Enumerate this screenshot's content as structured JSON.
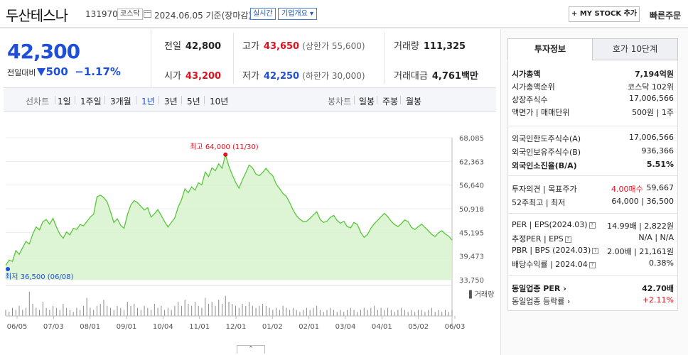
{
  "header": {
    "stock_name": "두산테스나",
    "code": "131970",
    "market_tag": "코스닥",
    "date_text": "2024.06.05  기준(장마감)",
    "realtime_label": "실시간",
    "company_overview_label": "기업개요 ▾",
    "my_stock_label": "+ MY STOCK 추가",
    "quick_order_label": "빠른주문"
  },
  "price": {
    "current": "42,300",
    "change_label": "전일대비",
    "change_amount": "500",
    "change_percent": "−1.17%",
    "direction": "down"
  },
  "stats": {
    "prev_close_label": "전일",
    "prev_close": "42,800",
    "high_label": "고가",
    "high": "43,650",
    "upper_limit": "(상한가 55,600)",
    "volume_label": "거래량",
    "volume": "111,325",
    "open_label": "시가",
    "open": "43,200",
    "low_label": "저가",
    "low": "42,250",
    "lower_limit": "(하한가 30,000)",
    "amount_label": "거래대금",
    "amount": "4,761",
    "amount_unit": "백만"
  },
  "period_bar": {
    "line_label": "선차트",
    "line_periods": [
      "1일",
      "1주일",
      "3개월",
      "1년",
      "3년",
      "5년",
      "10년"
    ],
    "active_period": "1년",
    "candle_label": "봉차트",
    "candle_periods": [
      "일봉",
      "주봉",
      "월봉"
    ]
  },
  "chart_data": {
    "type": "area",
    "title": "",
    "y_ticks": [
      "68,085",
      "62,363",
      "56,640",
      "50,918",
      "45,195",
      "39,473",
      "33,750"
    ],
    "ylim": [
      33750,
      68085
    ],
    "x_ticks": [
      "06/05",
      "07/03",
      "08/01",
      "09/01",
      "10/04",
      "11/01",
      "12/01",
      "01/02",
      "02/01",
      "03/04",
      "04/01",
      "05/02",
      "06/03"
    ],
    "high_annotation": "최고 64,000 (11/30)",
    "low_annotation": "최저 36,500 (06/08)",
    "volume_label": "거래량",
    "line_color": "#58c73b",
    "fill_color": "#d7f3cd",
    "series": [
      {
        "values": [
          37200,
          38500,
          38200,
          40800,
          39900,
          41500,
          43000,
          42400,
          44800,
          46500,
          45800,
          47800,
          48300,
          47200,
          48600,
          46500,
          44800,
          43800,
          45300,
          44600,
          46200,
          45900,
          47100,
          46800,
          47800,
          48900,
          49600,
          53800,
          54200,
          53600,
          52600,
          50200,
          47600,
          48500,
          46900,
          46200,
          49500,
          51800,
          52900,
          52400,
          51500,
          50600,
          51200,
          48900,
          49700,
          50700,
          49300,
          47800,
          46500,
          47600,
          48700,
          51300,
          53100,
          55700,
          54800,
          56200,
          55400,
          57200,
          56700,
          59800,
          58700,
          60800,
          60100,
          61800,
          60700,
          64000,
          61200,
          59100,
          57300,
          55900,
          57900,
          59600,
          61500,
          60800,
          59300,
          58900,
          59700,
          60700,
          59600,
          58900,
          56900,
          55800,
          54600,
          53900,
          52400,
          50600,
          49200,
          48400,
          47800,
          47900,
          48600,
          49400,
          50200,
          48300,
          47600,
          47900,
          48800,
          49300,
          48100,
          47400,
          47900,
          46600,
          46300,
          47600,
          47100,
          45200,
          44000,
          44700,
          46200,
          47300,
          48100,
          49000,
          49800,
          49000,
          47900,
          47100,
          46600,
          47300,
          48200,
          47800,
          46400,
          45900,
          46600,
          47200,
          46400,
          45600,
          44700,
          44200,
          45100,
          45600,
          44800,
          44300,
          43300
        ]
      }
    ],
    "volume": [
      3,
      2,
      4,
      3,
      5,
      3,
      4,
      12,
      6,
      4,
      3,
      7,
      4,
      3,
      5,
      4,
      3,
      6,
      4,
      3,
      2,
      4,
      3,
      5,
      9,
      4,
      3,
      5,
      6,
      8,
      5,
      4,
      3,
      5,
      4,
      3,
      7,
      5,
      6,
      4,
      3,
      5,
      4,
      3,
      6,
      4,
      5,
      3,
      4,
      3,
      5,
      7,
      5,
      8,
      6,
      5,
      7,
      5,
      4,
      9,
      6,
      7,
      5,
      8,
      6,
      10,
      7,
      6,
      5,
      4,
      6,
      5,
      7,
      5,
      4,
      5,
      6,
      5,
      4,
      3,
      4,
      3,
      5,
      4,
      3,
      4,
      3,
      2,
      3,
      4,
      3,
      4,
      5,
      3,
      2,
      3,
      4,
      3,
      2,
      3,
      2,
      3,
      4,
      3,
      2,
      3,
      4,
      3,
      4,
      5,
      3,
      4,
      3,
      4,
      3,
      2,
      3,
      4,
      3,
      2,
      3,
      2,
      3,
      3,
      2,
      3,
      4,
      2,
      3,
      2,
      3,
      2,
      3
    ]
  },
  "side_panel": {
    "tab_invest": "투자정보",
    "tab_quote": "호가 10단계",
    "rows1": [
      {
        "k": "시가총액",
        "v": "7,194억원",
        "bold": true
      },
      {
        "k": "시가총액순위",
        "v": "코스닥 102위"
      },
      {
        "k": "상장주식수",
        "v": "17,006,566"
      },
      {
        "k": "액면가 | 매매단위",
        "v": "500원 | 1주"
      }
    ],
    "rows2": [
      {
        "k": "외국인한도주식수(A)",
        "v": "17,006,566"
      },
      {
        "k": "외국인보유주식수(B)",
        "v": "936,366"
      },
      {
        "k": "외국인소진율(B/A)",
        "v": "5.51%",
        "bold": true
      }
    ],
    "opinion_label": "투자의견 | 목표주가",
    "opinion_value": "4.00매수",
    "target_price": "59,667",
    "range52_label": "52주최고 | 최저",
    "range52_value": "64,000 | 36,500",
    "per_label": "PER | EPS(2024.03)",
    "per_value": "14.99배 | 2,822원",
    "est_per_label": "추정PER | EPS",
    "est_per_value": "N/A | N/A",
    "pbr_label": "PBR | BPS (2024.03)",
    "pbr_value": "2.00배 | 21,161원",
    "div_label": "배당수익률 | 2024.04",
    "div_value": "0.38%",
    "ind_per_label": "동일업종 PER",
    "ind_per_value": "42.70배",
    "ind_rate_label": "동일업종 등락률",
    "ind_rate_value": "+2.11%"
  }
}
